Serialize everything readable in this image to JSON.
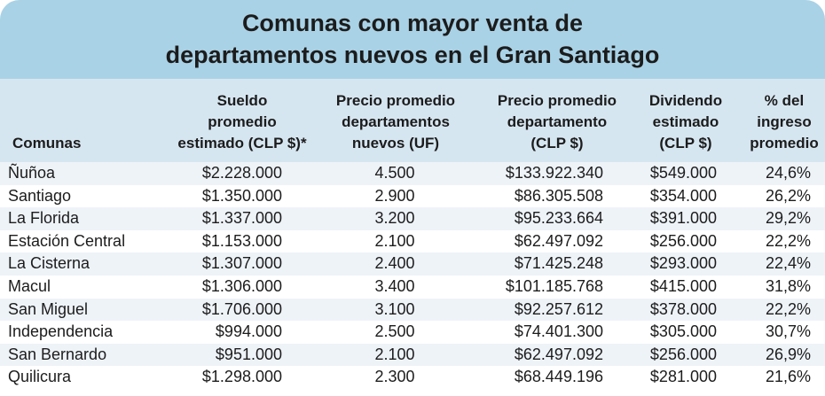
{
  "title": {
    "line1": "Comunas con mayor venta de",
    "line2": "departamentos nuevos en el Gran Santiago"
  },
  "headers": [
    {
      "name": "header-comunas",
      "lines": [
        "Comunas"
      ]
    },
    {
      "name": "header-sueldo",
      "lines": [
        "Sueldo",
        "promedio",
        "estimado (CLP $)*"
      ]
    },
    {
      "name": "header-precio-uf",
      "lines": [
        "Precio promedio",
        "departamentos",
        "nuevos (UF)"
      ]
    },
    {
      "name": "header-precio-clp",
      "lines": [
        "Precio promedio",
        "departamento",
        "(CLP $)"
      ]
    },
    {
      "name": "header-dividendo",
      "lines": [
        "Dividendo",
        "estimado",
        "(CLP $)"
      ]
    },
    {
      "name": "header-porcentaje",
      "lines": [
        "% del",
        "ingreso",
        "promedio"
      ]
    }
  ],
  "rows": [
    [
      "Ñuñoa",
      "$2.228.000",
      "4.500",
      "$133.922.340",
      "$549.000",
      "24,6%"
    ],
    [
      "Santiago",
      "$1.350.000",
      "2.900",
      "$86.305.508",
      "$354.000",
      "26,2%"
    ],
    [
      "La Florida",
      "$1.337.000",
      "3.200",
      "$95.233.664",
      "$391.000",
      "29,2%"
    ],
    [
      "Estación Central",
      "$1.153.000",
      "2.100",
      "$62.497.092",
      "$256.000",
      "22,2%"
    ],
    [
      "La Cisterna",
      "$1.307.000",
      "2.400",
      "$71.425.248",
      "$293.000",
      "22,4%"
    ],
    [
      "Macul",
      "$1.306.000",
      "3.400",
      "$101.185.768",
      "$415.000",
      "31,8%"
    ],
    [
      "San Miguel",
      "$1.706.000",
      "3.100",
      "$92.257.612",
      "$378.000",
      "22,2%"
    ],
    [
      "Independencia",
      "$994.000",
      "2.500",
      "$74.401.300",
      "$305.000",
      "30,7%"
    ],
    [
      "San Bernardo",
      "$951.000",
      "2.100",
      "$62.497.092",
      "$256.000",
      "26,9%"
    ],
    [
      "Quilicura",
      "$1.298.000",
      "2.300",
      "$68.449.196",
      "$281.000",
      "21,6%"
    ]
  ]
}
